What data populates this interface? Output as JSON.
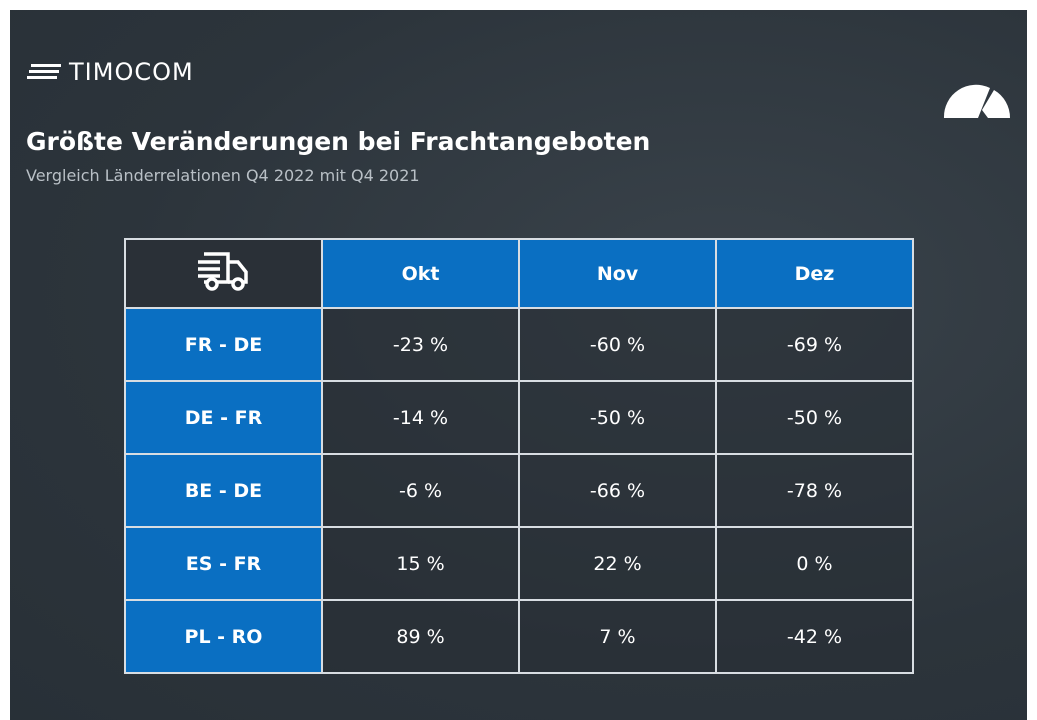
{
  "header": {
    "brand": "TIMOCOM",
    "title": "Größte Veränderungen bei Frachtangeboten",
    "subtitle": "Vergleich Länderrelationen Q4 2022 mit Q4 2021"
  },
  "table": {
    "columns": [
      "Okt",
      "Nov",
      "Dez"
    ],
    "rows": [
      {
        "label": "FR - DE",
        "cells": [
          "-23 %",
          "-60 %",
          "-69 %"
        ]
      },
      {
        "label": "DE - FR",
        "cells": [
          "-14 %",
          "-50 %",
          "-50 %"
        ]
      },
      {
        "label": "BE - DE",
        "cells": [
          "-6 %",
          "-66 %",
          "-78 %"
        ]
      },
      {
        "label": "ES - FR",
        "cells": [
          "15 %",
          "22 %",
          "0 %"
        ]
      },
      {
        "label": "PL - RO",
        "cells": [
          "89 %",
          "7 %",
          "-42 %"
        ]
      }
    ]
  }
}
